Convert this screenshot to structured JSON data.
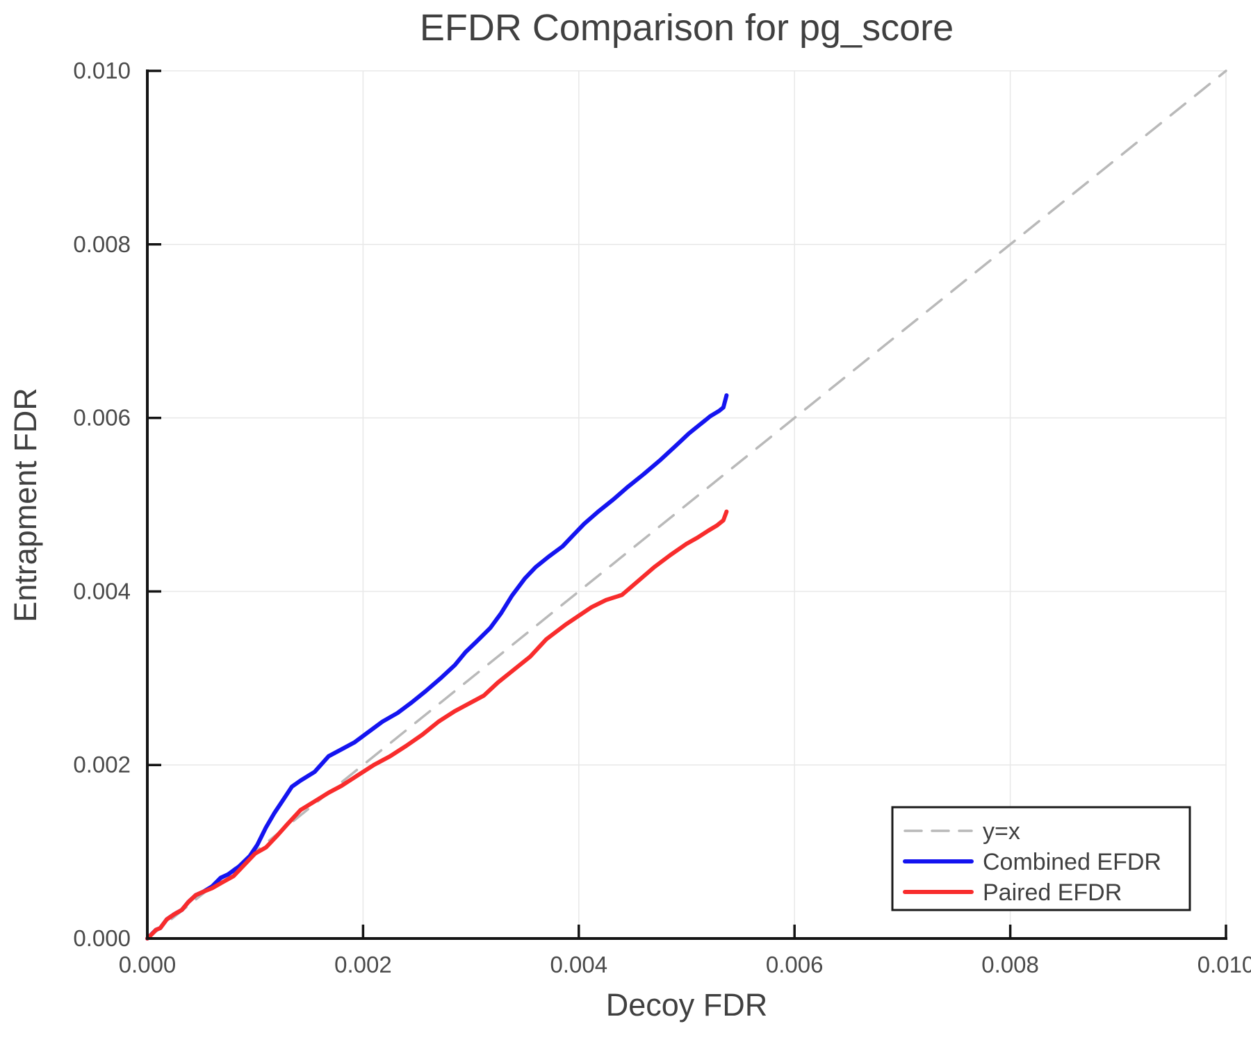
{
  "chart_data": {
    "type": "line",
    "title": "EFDR Comparison for pg_score",
    "xlabel": "Decoy FDR",
    "ylabel": "Entrapment FDR",
    "xlim": [
      0.0,
      0.01
    ],
    "ylim": [
      0.0,
      0.01
    ],
    "xticks": [
      0.0,
      0.002,
      0.004,
      0.006,
      0.008,
      0.01
    ],
    "xtick_labels": [
      "0.000",
      "0.002",
      "0.004",
      "0.006",
      "0.008",
      "0.010"
    ],
    "yticks": [
      0.0,
      0.002,
      0.004,
      0.006,
      0.008,
      0.01
    ],
    "ytick_labels": [
      "0.000",
      "0.002",
      "0.004",
      "0.006",
      "0.008",
      "0.010"
    ],
    "grid": true,
    "legend_position": "lower right",
    "series": [
      {
        "name": "y=x",
        "style": "dashed",
        "color": "#b9b9b9",
        "width": 3.5,
        "x": [
          0.0,
          0.01
        ],
        "y": [
          0.0,
          0.01
        ]
      },
      {
        "name": "Combined EFDR",
        "style": "solid",
        "color": "#1414f0",
        "width": 6,
        "x": [
          0.0,
          4e-05,
          8e-05,
          0.00012,
          0.00018,
          0.00025,
          0.00032,
          0.00038,
          0.00045,
          0.00052,
          0.0006,
          0.00068,
          0.00075,
          0.00085,
          0.00095,
          0.00102,
          0.0011,
          0.00118,
          0.00126,
          0.00134,
          0.00142,
          0.00155,
          0.00168,
          0.0018,
          0.00192,
          0.00205,
          0.00218,
          0.00232,
          0.00245,
          0.00258,
          0.00272,
          0.00285,
          0.00295,
          0.00305,
          0.00318,
          0.00328,
          0.00338,
          0.0035,
          0.0036,
          0.00372,
          0.00385,
          0.00395,
          0.00405,
          0.00418,
          0.00432,
          0.00445,
          0.0046,
          0.00476,
          0.0049,
          0.00502,
          0.00512,
          0.00522,
          0.0053,
          0.00534,
          0.00537
        ],
        "y": [
          0.0,
          5e-05,
          0.0001,
          0.00012,
          0.00022,
          0.00028,
          0.00033,
          0.00042,
          0.0005,
          0.00054,
          0.0006,
          0.0007,
          0.00074,
          0.00083,
          0.00095,
          0.00108,
          0.00128,
          0.00145,
          0.0016,
          0.00175,
          0.00182,
          0.00192,
          0.0021,
          0.00218,
          0.00226,
          0.00238,
          0.0025,
          0.0026,
          0.00272,
          0.00285,
          0.003,
          0.00315,
          0.0033,
          0.00342,
          0.00358,
          0.00375,
          0.00395,
          0.00415,
          0.00428,
          0.0044,
          0.00452,
          0.00465,
          0.00478,
          0.00492,
          0.00506,
          0.0052,
          0.00535,
          0.00552,
          0.00568,
          0.00582,
          0.00592,
          0.00602,
          0.00608,
          0.00612,
          0.00626
        ]
      },
      {
        "name": "Paired EFDR",
        "style": "solid",
        "color": "#f82c2c",
        "width": 6,
        "x": [
          0.0,
          5e-05,
          8e-05,
          0.00012,
          0.00018,
          0.00025,
          0.00032,
          0.00038,
          0.00045,
          0.00052,
          0.0006,
          0.0007,
          0.0008,
          0.0009,
          0.001,
          0.0011,
          0.0012,
          0.0013,
          0.00142,
          0.00155,
          0.00168,
          0.0018,
          0.00195,
          0.0021,
          0.00225,
          0.0024,
          0.00255,
          0.0027,
          0.00285,
          0.003,
          0.00312,
          0.00325,
          0.0034,
          0.00355,
          0.0037,
          0.00388,
          0.004,
          0.00412,
          0.00425,
          0.0044,
          0.00455,
          0.0047,
          0.00485,
          0.005,
          0.0051,
          0.0052,
          0.00528,
          0.00534,
          0.00537
        ],
        "y": [
          0.0,
          6e-05,
          0.0001,
          0.00012,
          0.00022,
          0.00028,
          0.00033,
          0.00042,
          0.0005,
          0.00054,
          0.00058,
          0.00065,
          0.00072,
          0.00085,
          0.00098,
          0.00105,
          0.00118,
          0.00132,
          0.00148,
          0.00158,
          0.00168,
          0.00176,
          0.00188,
          0.002,
          0.0021,
          0.00222,
          0.00235,
          0.0025,
          0.00262,
          0.00272,
          0.0028,
          0.00295,
          0.0031,
          0.00325,
          0.00345,
          0.00362,
          0.00372,
          0.00382,
          0.0039,
          0.00396,
          0.00412,
          0.00428,
          0.00442,
          0.00455,
          0.00462,
          0.0047,
          0.00476,
          0.00482,
          0.00492
        ]
      }
    ],
    "colors": {
      "background": "#ffffff",
      "gridline": "#e9e9e9",
      "spine": "#141414",
      "tick_text": "#4a4a4a",
      "label_text": "#404040",
      "legend_border": "#1a1a1a"
    }
  }
}
